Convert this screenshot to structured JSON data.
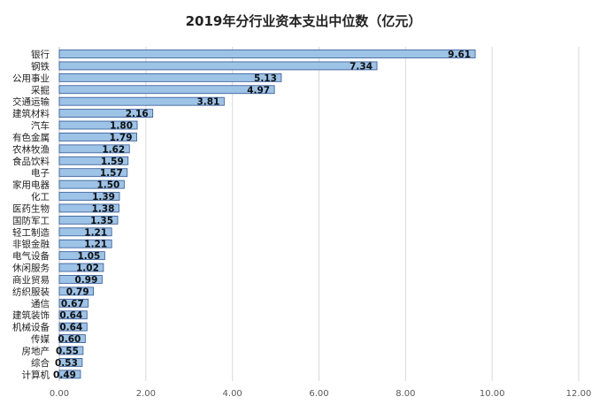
{
  "chart_data": {
    "type": "bar",
    "orientation": "horizontal",
    "title": "2019年分行业资本支出中位数（亿元）",
    "xlabel": "",
    "ylabel": "",
    "xlim": [
      0,
      12
    ],
    "x_ticks": [
      "0.00",
      "2.00",
      "4.00",
      "6.00",
      "8.00",
      "10.00",
      "12.00"
    ],
    "grid": "vertical gridlines",
    "legend": "none",
    "bar_color": "#9DC3E6",
    "bar_edge_color": "#2F5597",
    "categories": [
      "银行",
      "钢铁",
      "公用事业",
      "采掘",
      "交通运输",
      "建筑材料",
      "汽车",
      "有色金属",
      "农林牧渔",
      "食品饮料",
      "电子",
      "家用电器",
      "化工",
      "医药生物",
      "国防军工",
      "轻工制造",
      "非银金融",
      "电气设备",
      "休闲服务",
      "商业贸易",
      "纺织服装",
      "通信",
      "建筑装饰",
      "机械设备",
      "传媒",
      "房地产",
      "综合",
      "计算机"
    ],
    "values": [
      9.61,
      7.34,
      5.13,
      4.97,
      3.81,
      2.16,
      1.8,
      1.79,
      1.62,
      1.59,
      1.57,
      1.5,
      1.39,
      1.38,
      1.35,
      1.21,
      1.21,
      1.05,
      1.02,
      0.99,
      0.79,
      0.67,
      0.64,
      0.64,
      0.6,
      0.55,
      0.53,
      0.49
    ],
    "value_labels": [
      "9.61",
      "7.34",
      "5.13",
      "4.97",
      "3.81",
      "2.16",
      "1.80",
      "1.79",
      "1.62",
      "1.59",
      "1.57",
      "1.50",
      "1.39",
      "1.38",
      "1.35",
      "1.21",
      "1.21",
      "1.05",
      "1.02",
      "0.99",
      "0.79",
      "0.67",
      "0.64",
      "0.64",
      "0.60",
      "0.55",
      "0.53",
      "0.49"
    ]
  }
}
